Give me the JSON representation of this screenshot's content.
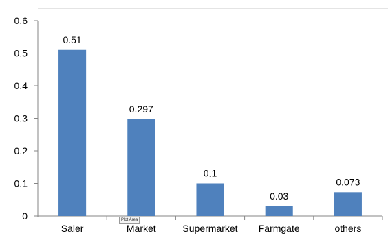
{
  "chart_data": {
    "type": "bar",
    "title": "",
    "xlabel": "",
    "ylabel": "",
    "categories": [
      "Saler",
      "Market",
      "Supermarket",
      "Farmgate",
      "others"
    ],
    "values": [
      0.51,
      0.297,
      0.1,
      0.03,
      0.073
    ],
    "data_labels": [
      "0.51",
      "0.297",
      "0.1",
      "0.03",
      "0.073"
    ],
    "y_ticks": [
      "0",
      "0.1",
      "0.2",
      "0.3",
      "0.4",
      "0.5",
      "0.6"
    ],
    "ylim": [
      0,
      0.6
    ],
    "grid": false,
    "legend": "none",
    "bar_color": "#4f81bd"
  },
  "tooltip": "Plot Area"
}
